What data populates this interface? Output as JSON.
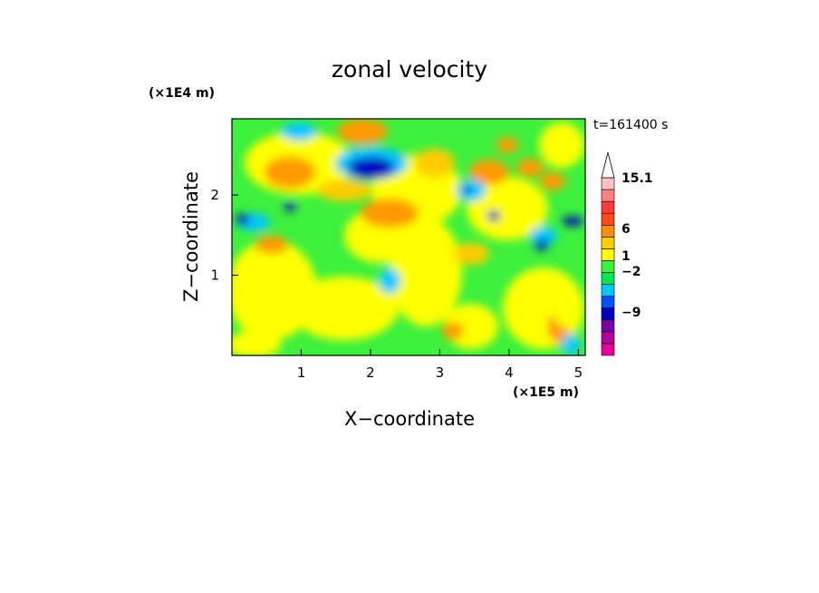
{
  "chart_data": {
    "type": "heatmap",
    "title": "zonal velocity",
    "xlabel": "X−coordinate",
    "ylabel": "Z−coordinate",
    "x_unit": "(×1E5 m)",
    "y_unit": "(×1E4 m)",
    "time_label": "t=161400 s",
    "xlim": [
      0,
      5.1
    ],
    "ylim": [
      0,
      2.95
    ],
    "x_ticks": [
      "1",
      "2",
      "3",
      "4",
      "5"
    ],
    "y_ticks": [
      "1",
      "2"
    ],
    "colorbar": {
      "labels": [
        "15.1",
        "6",
        "1",
        "−2",
        "−9"
      ],
      "levels": [
        -15,
        -12,
        -9,
        -6,
        -4,
        -2,
        -1,
        0,
        1,
        2,
        4,
        6,
        9,
        12,
        15.1
      ],
      "colors": [
        "#e6009e",
        "#b0009e",
        "#7a00a8",
        "#0000c0",
        "#0050ff",
        "#00c8ff",
        "#00e650",
        "#3cf03c",
        "#ffff00",
        "#ffcc00",
        "#ff8c00",
        "#ff4a1a",
        "#ff3a3a",
        "#ff8080",
        "#ffc0c0"
      ],
      "extend": "max"
    }
  }
}
